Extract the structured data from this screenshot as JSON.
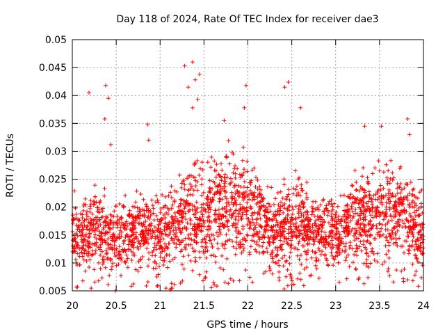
{
  "chart_data": {
    "type": "scatter",
    "title": "Day 118 of 2024, Rate Of TEC Index for receiver dae3",
    "xlabel": "GPS time / hours",
    "ylabel": "ROTI / TECUs",
    "xlim": [
      20,
      24
    ],
    "ylim": [
      0.005,
      0.05
    ],
    "xticks": [
      "20",
      "20.5",
      "21",
      "21.5",
      "22",
      "22.5",
      "23",
      "23.5",
      "24"
    ],
    "yticks": [
      "0.005",
      "0.01",
      "0.015",
      "0.02",
      "0.025",
      "0.03",
      "0.035",
      "0.04",
      "0.045",
      "0.05"
    ],
    "grid": true,
    "marker": "plus",
    "marker_color": "#ff0000",
    "approx_point_count": 2600,
    "density_profile": {
      "x": [
        20.0,
        20.25,
        20.5,
        20.75,
        21.0,
        21.25,
        21.5,
        21.75,
        22.0,
        22.25,
        22.5,
        22.75,
        23.0,
        23.25,
        23.5,
        23.75,
        24.0
      ],
      "typical_low": [
        0.008,
        0.008,
        0.008,
        0.009,
        0.008,
        0.008,
        0.008,
        0.009,
        0.009,
        0.009,
        0.008,
        0.009,
        0.009,
        0.009,
        0.009,
        0.009,
        0.008
      ],
      "typical_high": [
        0.026,
        0.027,
        0.024,
        0.026,
        0.025,
        0.03,
        0.033,
        0.035,
        0.034,
        0.025,
        0.029,
        0.026,
        0.025,
        0.03,
        0.031,
        0.032,
        0.025
      ]
    },
    "notable_points": [
      {
        "x": 20.19,
        "y": 0.0405
      },
      {
        "x": 20.38,
        "y": 0.0418
      },
      {
        "x": 20.41,
        "y": 0.0395
      },
      {
        "x": 20.37,
        "y": 0.0358
      },
      {
        "x": 20.44,
        "y": 0.0312
      },
      {
        "x": 20.86,
        "y": 0.0348
      },
      {
        "x": 20.87,
        "y": 0.032
      },
      {
        "x": 21.28,
        "y": 0.0453
      },
      {
        "x": 21.32,
        "y": 0.0415
      },
      {
        "x": 21.37,
        "y": 0.046
      },
      {
        "x": 21.4,
        "y": 0.0428
      },
      {
        "x": 21.45,
        "y": 0.0438
      },
      {
        "x": 21.43,
        "y": 0.0393
      },
      {
        "x": 21.37,
        "y": 0.0378
      },
      {
        "x": 21.73,
        "y": 0.0355
      },
      {
        "x": 21.98,
        "y": 0.0418
      },
      {
        "x": 21.96,
        "y": 0.0378
      },
      {
        "x": 22.42,
        "y": 0.0415
      },
      {
        "x": 22.46,
        "y": 0.0424
      },
      {
        "x": 22.6,
        "y": 0.0378
      },
      {
        "x": 23.33,
        "y": 0.0345
      },
      {
        "x": 23.52,
        "y": 0.0345
      },
      {
        "x": 23.82,
        "y": 0.0358
      },
      {
        "x": 23.84,
        "y": 0.033
      },
      {
        "x": 23.88,
        "y": 0.0068
      }
    ]
  }
}
